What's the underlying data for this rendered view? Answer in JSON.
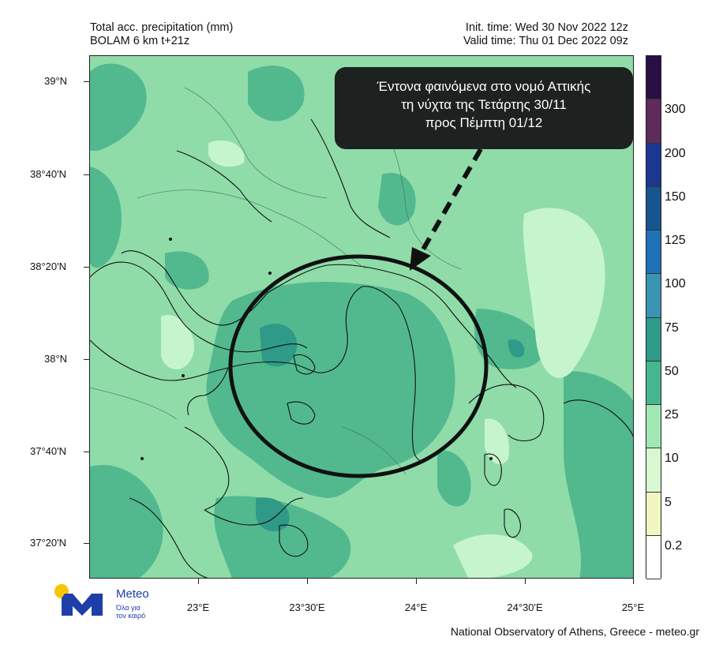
{
  "header": {
    "title_line1": "Total acc. precipitation (mm)",
    "title_line2": "BOLAM 6 km t+21z",
    "init_time": "Init. time: Wed 30 Nov 2022 12z",
    "valid_time": "Valid time: Thu 01 Dec 2022 09z"
  },
  "annotation": {
    "line1": "Έντονα φαινόμενα στο νομό Αττικής",
    "line2": "τη νύχτα της Τετάρτης 30/11",
    "line3": "προς  Πέμπτη  01/12"
  },
  "lat_labels": [
    "39°N",
    "38°40'N",
    "38°20'N",
    "38°N",
    "37°40'N",
    "37°20'N"
  ],
  "lon_labels": [
    "23°E",
    "23°30'E",
    "24°E",
    "24°30'E",
    "25°E"
  ],
  "colorbar": {
    "labels": [
      "300",
      "200",
      "150",
      "125",
      "100",
      "75",
      "50",
      "25",
      "10",
      "5",
      "0.2"
    ],
    "colors": [
      "#2a0f46",
      "#5f2a5c",
      "#1b3790",
      "#17558f",
      "#1f72b8",
      "#3a95b5",
      "#2f9a88",
      "#47b68e",
      "#9fe8b4",
      "#d8f8d2",
      "#f1f6c0",
      "#ffffff"
    ]
  },
  "logo": {
    "word": "Meteo",
    "tagline1": "Όλα για",
    "tagline2": "τον καιρό"
  },
  "footer": "National Observatory of Athens, Greece - meteo.gr"
}
